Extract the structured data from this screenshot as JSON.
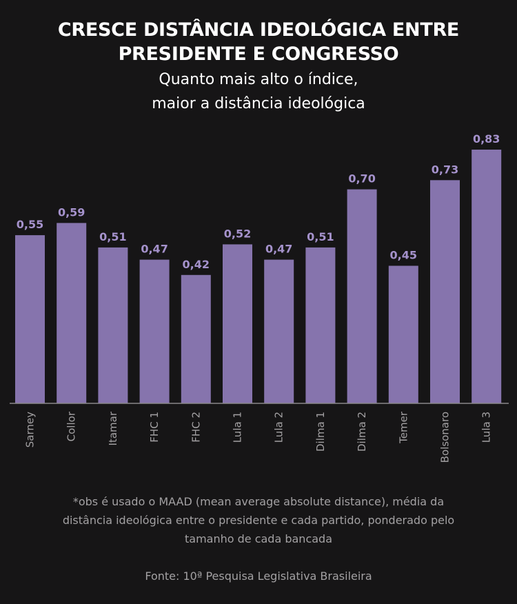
{
  "header": {
    "title_lines": [
      "CRESCE DISTÂNCIA IDEOLÓGICA ENTRE",
      "PRESIDENTE E CONGRESSO"
    ],
    "subtitle_lines": [
      "Quanto mais alto o índice,",
      "maior a distância ideológica"
    ]
  },
  "colors": {
    "background": "#161516",
    "bar": "#8674ad",
    "value_label": "#a592cc",
    "axis": "#8a888a",
    "tick_label": "#a3a1a3",
    "title": "#ffffff"
  },
  "chart_data": {
    "type": "bar",
    "title": "CRESCE DISTÂNCIA IDEOLÓGICA ENTRE PRESIDENTE E CONGRESSO",
    "subtitle": "Quanto mais alto o índice, maior a distância ideológica",
    "categories": [
      "Sarney",
      "Collor",
      "Itamar",
      "FHC 1",
      "FHC 2",
      "Lula 1",
      "Lula 2",
      "Dilma 1",
      "Dilma 2",
      "Temer",
      "Bolsonaro",
      "Lula 3"
    ],
    "values": [
      0.55,
      0.59,
      0.51,
      0.47,
      0.42,
      0.52,
      0.47,
      0.51,
      0.7,
      0.45,
      0.73,
      0.83
    ],
    "value_labels": [
      "0,55",
      "0,59",
      "0,51",
      "0,47",
      "0,42",
      "0,52",
      "0,47",
      "0,51",
      "0,70",
      "0,45",
      "0,73",
      "0,83"
    ],
    "xlabel": "",
    "ylabel": "",
    "ylim": [
      0,
      0.83
    ],
    "grid": false,
    "legend": "none"
  },
  "footer": {
    "note_lines": [
      "*obs é usado o MAAD (mean average absolute distance), média da",
      "distância ideológica entre o presidente e cada partido, ponderado pelo",
      "tamanho de cada bancada"
    ],
    "source": "Fonte: 10ª Pesquisa Legislativa Brasileira"
  }
}
